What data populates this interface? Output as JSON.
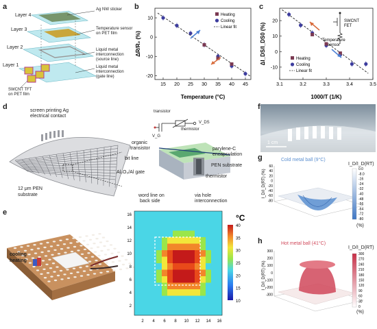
{
  "panel_labels": {
    "a": "a",
    "b": "b",
    "c": "c",
    "d": "d",
    "e": "e",
    "f": "f",
    "g": "g",
    "h": "h"
  },
  "panel_a": {
    "layers": [
      "Layer 4",
      "Layer 3",
      "Layer 2",
      "Layer 1"
    ],
    "annotations": [
      "Ag NW sticker",
      "Temperature sensor on PET film",
      "Liquid metal interconnection (source line)",
      "Liquid metal interconnection (gate line)"
    ],
    "tft_label_1": "SWCNT TFT",
    "tft_label_2": "on PET film"
  },
  "panel_b": {
    "title": "",
    "xlabel": "Temperature (°C)",
    "ylabel": "ΔR/R₀ (%)",
    "legend": [
      "Heating",
      "Cooling",
      "Linear fit"
    ],
    "colors": {
      "heating": "#7b3a52",
      "cooling": "#3d3d9e",
      "fit": "#222222",
      "up_arrow": "#4a7fd4",
      "down_arrow": "#d86a3a"
    }
  },
  "panel_c": {
    "xlabel": "1000/T (1/K)",
    "ylabel": "ΔI_DS/I_DS0 (%)",
    "legend": [
      "Heating",
      "Cooling",
      "Linear fit"
    ],
    "inset_label_1": "SWCNT",
    "inset_label_2": "FET",
    "inset_label_3": "Temperature",
    "inset_label_4": "sensor"
  },
  "panel_d": {
    "labels": [
      "screen printing Ag",
      "electrical contact",
      "12 μm PEN",
      "substrate",
      "transistor",
      "thermistor",
      "V_DS",
      "V_G",
      "organic",
      "transistor",
      "bit line",
      "Al₂O₃/Al gate",
      "word line on",
      "back side",
      "parylene-C",
      "encapsulation",
      "PEN substrate",
      "thermistor",
      "via hole",
      "interconnection"
    ]
  },
  "panel_e": {
    "legend_cooling": "cooling",
    "legend_heating": "heating",
    "unit": "°C",
    "colorbar_ticks": [
      "40",
      "35",
      "30",
      "25",
      "20",
      "15",
      "10"
    ],
    "x_ticks": [
      "2",
      "4",
      "6",
      "8",
      "10",
      "12",
      "14",
      "16"
    ],
    "y_ticks": [
      "2",
      "4",
      "6",
      "8",
      "10",
      "12",
      "14",
      "16"
    ]
  },
  "panel_f": {
    "scale": "1 cm"
  },
  "panel_g": {
    "title": "Cold metal ball (9°C)",
    "cbar_title": "I_D/I_D(RT)",
    "cbar_unit": "(%)",
    "cbar_ticks": [
      "0.0",
      "-8.0",
      "-16",
      "-24",
      "-32",
      "-40",
      "-48",
      "-56",
      "-64",
      "-72",
      "-80"
    ],
    "z_ticks": [
      "60",
      "40",
      "20",
      "0",
      "-20",
      "-40",
      "-60",
      "-80"
    ],
    "zlabel": "I_D/I_D(RT) (%)",
    "color": "#5b8fd0"
  },
  "panel_h": {
    "title": "Hot metal ball (41°C)",
    "cbar_title": "I_D/I_D(RT)",
    "cbar_unit": "(%)",
    "cbar_ticks": [
      "300",
      "270",
      "240",
      "210",
      "180",
      "150",
      "120",
      "90",
      "60",
      "30",
      "0"
    ],
    "z_ticks": [
      "300",
      "200",
      "100",
      "0",
      "-100",
      "-200",
      "-300"
    ],
    "zlabel": "I_D/I_D(RT) (%)",
    "color": "#d0485a"
  },
  "chart_data": [
    {
      "type": "scatter",
      "xlabel": "Temperature (°C)",
      "ylabel": "ΔR/R₀ (%)",
      "xlim": [
        12,
        47
      ],
      "ylim": [
        -22,
        15
      ],
      "xticks": [
        15,
        20,
        25,
        30,
        35,
        40,
        45
      ],
      "yticks": [
        10,
        0,
        -10,
        -20
      ],
      "series": [
        {
          "name": "Heating",
          "x": [
            30,
            35,
            40
          ],
          "y": [
            -4,
            -11,
            -14
          ]
        },
        {
          "name": "Cooling",
          "x": [
            15,
            20,
            25,
            30,
            35,
            40,
            45
          ],
          "y": [
            10,
            6,
            2,
            -4,
            -10,
            -15,
            -19
          ]
        },
        {
          "name": "Linear fit",
          "x": [
            13,
            47
          ],
          "y": [
            12.5,
            -20.5
          ]
        }
      ]
    },
    {
      "type": "scatter",
      "xlabel": "1000/T (1/K)",
      "ylabel": "ΔI_DS/I_DS0 (%)",
      "xlim": [
        3.1,
        3.5
      ],
      "ylim": [
        -18,
        28
      ],
      "xticks": [
        3.1,
        3.2,
        3.3,
        3.4,
        3.5
      ],
      "yticks": [
        20,
        10,
        0,
        -10
      ],
      "series": [
        {
          "name": "Heating",
          "x": [
            3.24,
            3.3,
            3.36
          ],
          "y": [
            11,
            5,
            -1
          ]
        },
        {
          "name": "Cooling",
          "x": [
            3.14,
            3.19,
            3.24,
            3.3,
            3.36,
            3.41,
            3.47
          ],
          "y": [
            24,
            17,
            12,
            4,
            -2,
            -8,
            -8
          ]
        },
        {
          "name": "Linear fit",
          "x": [
            3.11,
            3.48
          ],
          "y": [
            27,
            -14
          ]
        }
      ]
    }
  ]
}
